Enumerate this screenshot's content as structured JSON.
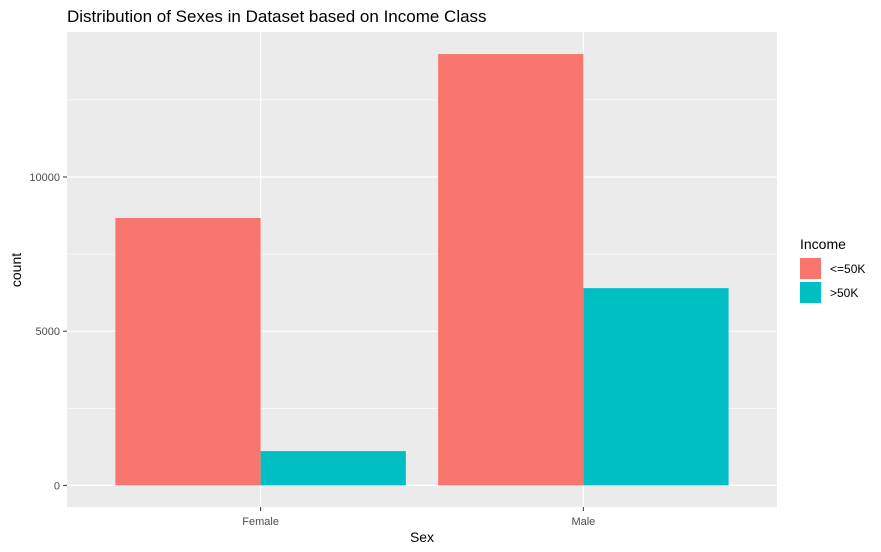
{
  "chart_data": {
    "type": "bar",
    "title": "Distribution of Sexes in Dataset based on Income Class",
    "xlabel": "Sex",
    "ylabel": "count",
    "categories": [
      "Female",
      "Male"
    ],
    "series": [
      {
        "name": "<=50K",
        "values": [
          8670,
          13984
        ],
        "color": "#F8766D"
      },
      {
        "name": ">50K",
        "values": [
          1112,
          6396
        ],
        "color": "#00BFC4"
      }
    ],
    "ylim": [
      -700,
      14700
    ],
    "yticks": [
      0,
      5000,
      10000
    ],
    "ytick_labels": [
      "0",
      "5000",
      "10000"
    ],
    "grid": true,
    "panel_background": "#EBEBEB",
    "legend": {
      "title": "Income",
      "position": "right"
    }
  }
}
